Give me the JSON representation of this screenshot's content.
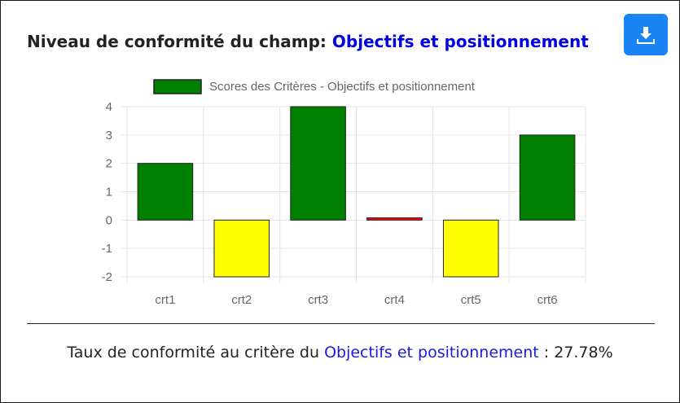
{
  "header": {
    "title_prefix": "Niveau de conformité du champ:",
    "field_name": "Objectifs et positionnement",
    "download_icon": "download-icon"
  },
  "footer": {
    "rate_prefix": "Taux de conformité au critère du",
    "field_name": "Objectifs et positionnement",
    "rate_separator": " : ",
    "rate_value": "27.78%"
  },
  "chart_data": {
    "type": "bar",
    "categories": [
      "crt1",
      "crt2",
      "crt3",
      "crt4",
      "crt5",
      "crt6"
    ],
    "series": [
      {
        "name": "Scores des Critères - Objectifs et positionnement",
        "values": [
          2,
          -2,
          4,
          0.08,
          -2,
          3
        ],
        "colors": [
          "#008000",
          "#ffff00",
          "#008000",
          "#ff0000",
          "#ffff00",
          "#008000"
        ]
      }
    ],
    "ylim": [
      -2,
      4
    ],
    "yticks": [
      4,
      3,
      2,
      1,
      0,
      -1,
      -2
    ],
    "grid": true,
    "legend_position": "top",
    "legend_color": "#008000"
  }
}
